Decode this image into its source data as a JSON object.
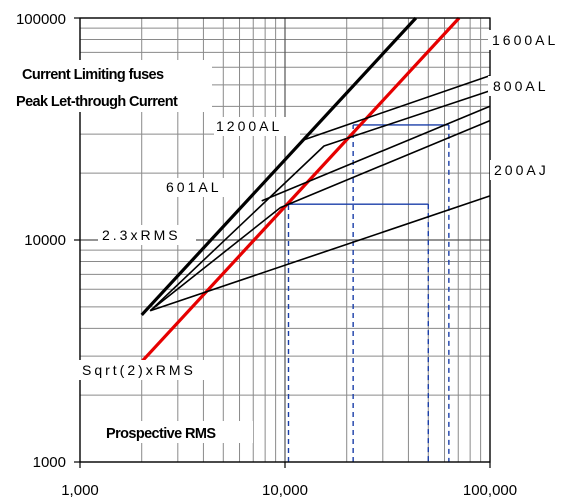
{
  "chart_data": {
    "type": "line",
    "x_scale": "log",
    "y_scale": "log",
    "xlim": [
      1000,
      100000
    ],
    "ylim": [
      1000,
      100000
    ],
    "grid": true,
    "x_tick_labels": [
      "1,000",
      "10,000",
      "100,000"
    ],
    "x_ticks": [
      1000,
      10000,
      100000
    ],
    "y_tick_labels": [
      "1000",
      "10000",
      "100000"
    ],
    "y_ticks": [
      1000,
      10000,
      100000
    ],
    "annotations": [
      "Current Limiting fuses",
      "Peak Let-through Current",
      "Prospective RMS"
    ],
    "series": [
      {
        "name": "2.3xRMS",
        "color": "#000000",
        "style": "bold",
        "x": [
          2000,
          43500
        ],
        "y": [
          4600,
          100000
        ]
      },
      {
        "name": "Sqrt(2)xRMS",
        "color": "#e60000",
        "style": "bold",
        "x": [
          2000,
          70700
        ],
        "y": [
          2830,
          100000
        ]
      },
      {
        "name": "200AJ",
        "color": "#000000",
        "style": "thin",
        "x": [
          2200,
          100000
        ],
        "y": [
          4800,
          15800
        ]
      },
      {
        "name": "601AL",
        "color": "#000000",
        "style": "thin",
        "x": [
          2200,
          9500,
          100000
        ],
        "y": [
          4800,
          14000,
          34500
        ]
      },
      {
        "name": "1200AL",
        "color": "#000000",
        "style": "thin",
        "x": [
          2200,
          15500,
          100000
        ],
        "y": [
          4800,
          26500,
          47000
        ]
      },
      {
        "name": "800AL",
        "color": "#000000",
        "style": "thin",
        "x": [
          7700,
          100000
        ],
        "y": [
          15000,
          40000
        ]
      },
      {
        "name": "1600AL",
        "color": "#000000",
        "style": "thin",
        "x": [
          12000,
          100000
        ],
        "y": [
          28000,
          55000
        ]
      }
    ],
    "curve_labels": [
      {
        "text": "1600AL",
        "series": "1600AL"
      },
      {
        "text": "800AL",
        "series": "800AL"
      },
      {
        "text": "1200AL",
        "series": "1200AL"
      },
      {
        "text": "200AJ",
        "series": "200AJ"
      },
      {
        "text": "601AL",
        "series": "601AL"
      },
      {
        "text": "2.3xRMS",
        "series": "2.3xRMS"
      },
      {
        "text": "Sqrt(2)xRMS",
        "series": "Sqrt(2)xRMS"
      }
    ],
    "guide_lines": [
      {
        "points": [
          [
            10400,
            1000
          ],
          [
            10400,
            14500
          ],
          [
            50000,
            14500
          ],
          [
            50000,
            1000
          ]
        ],
        "color": "#1a3ea8"
      },
      {
        "points": [
          [
            21500,
            1000
          ],
          [
            21500,
            33000
          ],
          [
            63000,
            33000
          ],
          [
            63000,
            1000
          ]
        ],
        "color": "#1a3ea8"
      }
    ]
  }
}
